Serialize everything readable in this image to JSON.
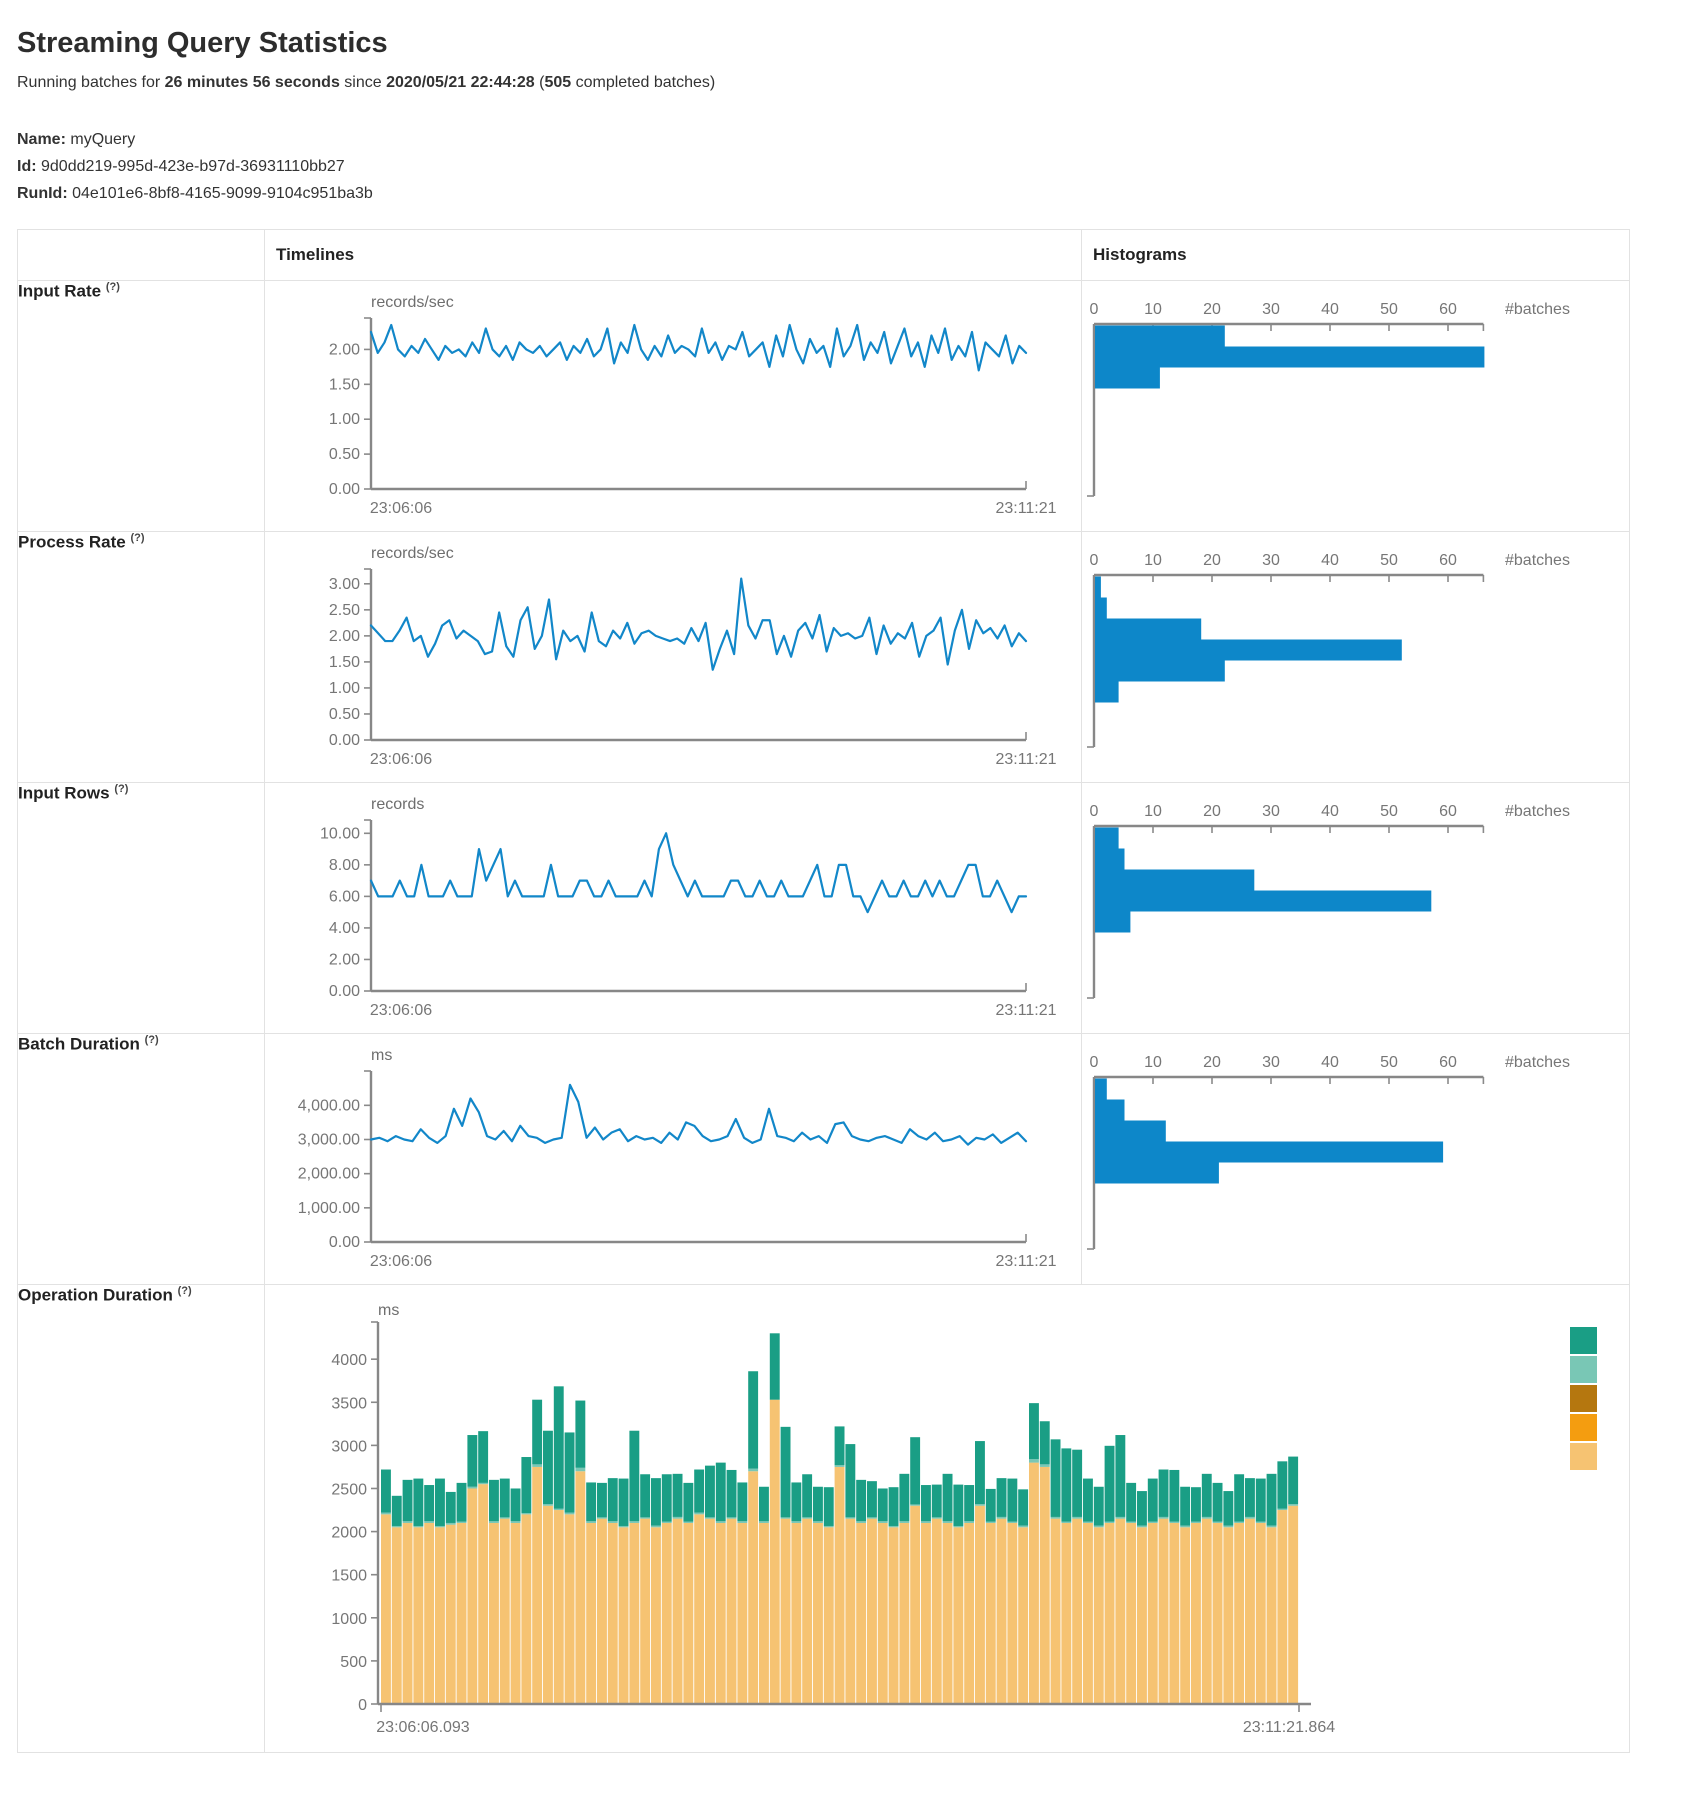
{
  "page": {
    "title": "Streaming Query Statistics",
    "sub": {
      "prefix": "Running batches for ",
      "duration": "26 minutes 56 seconds",
      "mid": " since ",
      "start": "2020/05/21 22:44:28",
      "open": " (",
      "count": "505",
      "close": " completed batches)"
    },
    "name_label": "Name:",
    "name": "myQuery",
    "id_label": "Id:",
    "id": "9d0dd219-995d-423e-b97d-36931110bb27",
    "runid_label": "RunId:",
    "runid": "04e101e6-8bf8-4165-9099-9104c951ba3b"
  },
  "table": {
    "timelines_header": "Timelines",
    "histograms_header": "Histograms"
  },
  "rows": [
    {
      "label": "Input Rate",
      "help": "(?)"
    },
    {
      "label": "Process Rate",
      "help": "(?)"
    },
    {
      "label": "Input Rows",
      "help": "(?)"
    },
    {
      "label": "Batch Duration",
      "help": "(?)"
    },
    {
      "label": "Operation Duration",
      "help": "(?)"
    }
  ],
  "colors": {
    "blue": "#0d87c9",
    "teal": "#1a9e85",
    "light_teal": "#79c7b5",
    "dark_gold": "#b5770f",
    "orange": "#f49d10",
    "light_orange": "#f6c372"
  },
  "chart_data": [
    {
      "name": "input-rate-timeline",
      "type": "line",
      "title": "records/sec",
      "x_start_label": "23:06:06",
      "x_end_label": "23:11:21",
      "ylim": [
        0,
        2.35
      ],
      "ytick_values": [
        0,
        0.5,
        1,
        1.5,
        2
      ],
      "ytick_labels": [
        "0.00",
        "0.50",
        "1.00",
        "1.50",
        "2.00"
      ],
      "values": [
        2.25,
        1.95,
        2.1,
        2.35,
        2.0,
        1.9,
        2.05,
        1.95,
        2.15,
        2.0,
        1.85,
        2.05,
        1.95,
        2.0,
        1.9,
        2.1,
        1.95,
        2.3,
        2.0,
        1.9,
        2.05,
        1.85,
        2.1,
        2.0,
        1.95,
        2.05,
        1.9,
        2.0,
        2.1,
        1.85,
        2.05,
        1.95,
        2.15,
        1.9,
        2.0,
        2.3,
        1.8,
        2.1,
        1.95,
        2.35,
        2.0,
        1.85,
        2.05,
        1.9,
        2.2,
        1.95,
        2.05,
        2.0,
        1.9,
        2.3,
        1.95,
        2.1,
        1.85,
        2.05,
        2.0,
        2.25,
        1.9,
        2.0,
        2.1,
        1.75,
        2.2,
        1.9,
        2.35,
        2.0,
        1.8,
        2.15,
        1.95,
        2.05,
        1.75,
        2.3,
        1.9,
        2.05,
        2.35,
        1.85,
        2.1,
        1.95,
        2.25,
        1.8,
        2.05,
        2.3,
        1.9,
        2.1,
        1.75,
        2.2,
        1.95,
        2.3,
        1.85,
        2.05,
        1.9,
        2.25,
        1.7,
        2.1,
        2.0,
        1.9,
        2.2,
        1.8,
        2.05,
        1.95
      ]
    },
    {
      "name": "input-rate-histogram",
      "type": "bar",
      "xlabel": "#batches",
      "xticks": [
        0,
        10,
        20,
        30,
        40,
        50,
        60
      ],
      "xlim": [
        0,
        66
      ],
      "values": [
        22,
        66,
        11
      ]
    },
    {
      "name": "process-rate-timeline",
      "type": "line",
      "title": "records/sec",
      "x_start_label": "23:06:06",
      "x_end_label": "23:11:21",
      "ylim": [
        0,
        3.15
      ],
      "ytick_values": [
        0,
        0.5,
        1,
        1.5,
        2,
        2.5,
        3
      ],
      "ytick_labels": [
        "0.00",
        "0.50",
        "1.00",
        "1.50",
        "2.00",
        "2.50",
        "3.00"
      ],
      "values": [
        2.2,
        2.05,
        1.9,
        1.9,
        2.1,
        2.35,
        1.9,
        2.0,
        1.6,
        1.85,
        2.2,
        2.3,
        1.95,
        2.1,
        2.0,
        1.9,
        1.65,
        1.7,
        2.45,
        1.8,
        1.6,
        2.3,
        2.55,
        1.75,
        2.0,
        2.7,
        1.55,
        2.1,
        1.9,
        2.0,
        1.7,
        2.45,
        1.9,
        1.8,
        2.1,
        1.95,
        2.25,
        1.85,
        2.05,
        2.1,
        2.0,
        1.95,
        1.9,
        1.95,
        1.85,
        2.15,
        1.9,
        2.25,
        1.35,
        1.75,
        2.1,
        1.65,
        3.1,
        2.2,
        1.95,
        2.3,
        2.3,
        1.65,
        2.0,
        1.6,
        2.1,
        2.25,
        1.95,
        2.4,
        1.7,
        2.15,
        2.0,
        2.05,
        1.95,
        2.0,
        2.35,
        1.65,
        2.2,
        1.85,
        2.05,
        1.95,
        2.25,
        1.6,
        2.0,
        2.1,
        2.35,
        1.45,
        2.1,
        2.5,
        1.75,
        2.3,
        2.05,
        2.15,
        1.95,
        2.2,
        1.8,
        2.05,
        1.9
      ]
    },
    {
      "name": "process-rate-histogram",
      "type": "bar",
      "xlabel": "#batches",
      "xticks": [
        0,
        10,
        20,
        30,
        40,
        50,
        60
      ],
      "xlim": [
        0,
        66
      ],
      "values": [
        1,
        2,
        18,
        52,
        22,
        4
      ]
    },
    {
      "name": "input-rows-timeline",
      "type": "line",
      "title": "records",
      "x_start_label": "23:06:06",
      "x_end_label": "23:11:21",
      "ylim": [
        0,
        10.4
      ],
      "ytick_values": [
        0,
        2,
        4,
        6,
        8,
        10
      ],
      "ytick_labels": [
        "0.00",
        "2.00",
        "4.00",
        "6.00",
        "8.00",
        "10.00"
      ],
      "values": [
        7,
        6,
        6,
        6,
        7,
        6,
        6,
        8,
        6,
        6,
        6,
        7,
        6,
        6,
        6,
        9,
        7,
        8,
        9,
        6,
        7,
        6,
        6,
        6,
        6,
        8,
        6,
        6,
        6,
        7,
        7,
        6,
        6,
        7,
        6,
        6,
        6,
        6,
        7,
        6,
        9,
        10,
        8,
        7,
        6,
        7,
        6,
        6,
        6,
        6,
        7,
        7,
        6,
        6,
        7,
        6,
        6,
        7,
        6,
        6,
        6,
        7,
        8,
        6,
        6,
        8,
        8,
        6,
        6,
        5,
        6,
        7,
        6,
        6,
        7,
        6,
        6,
        7,
        6,
        7,
        6,
        6,
        7,
        8,
        8,
        6,
        6,
        7,
        6,
        5,
        6,
        6
      ]
    },
    {
      "name": "input-rows-histogram",
      "type": "bar",
      "xlabel": "#batches",
      "xticks": [
        0,
        10,
        20,
        30,
        40,
        50,
        60
      ],
      "xlim": [
        0,
        66
      ],
      "values": [
        4,
        5,
        27,
        57,
        6
      ]
    },
    {
      "name": "batch-duration-timeline",
      "type": "line",
      "title": "ms",
      "x_start_label": "23:06:06",
      "x_end_label": "23:11:21",
      "ylim": [
        0,
        4800
      ],
      "ytick_values": [
        0,
        1000,
        2000,
        3000,
        4000
      ],
      "ytick_labels": [
        "0.00",
        "1,000.00",
        "2,000.00",
        "3,000.00",
        "4,000.00"
      ],
      "values": [
        3000,
        3050,
        2950,
        3100,
        3000,
        2950,
        3300,
        3050,
        2900,
        3100,
        3900,
        3400,
        4200,
        3800,
        3100,
        3000,
        3250,
        2950,
        3400,
        3100,
        3050,
        2900,
        3000,
        3050,
        4600,
        4100,
        3050,
        3350,
        3000,
        3200,
        3300,
        2950,
        3100,
        3000,
        3050,
        2900,
        3200,
        3000,
        3500,
        3400,
        3100,
        2950,
        3000,
        3100,
        3600,
        3050,
        2900,
        3000,
        3900,
        3100,
        3050,
        2950,
        3200,
        3000,
        3100,
        2900,
        3450,
        3500,
        3100,
        3000,
        2950,
        3050,
        3100,
        3000,
        2900,
        3300,
        3100,
        3000,
        3200,
        2950,
        3000,
        3100,
        2850,
        3050,
        3000,
        3150,
        2900,
        3050,
        3200,
        2950
      ]
    },
    {
      "name": "batch-duration-histogram",
      "type": "bar",
      "xlabel": "#batches",
      "xticks": [
        0,
        10,
        20,
        30,
        40,
        50,
        60
      ],
      "xlim": [
        0,
        66
      ],
      "values": [
        2,
        5,
        12,
        59,
        21
      ]
    },
    {
      "name": "operation-duration-stacked",
      "type": "stacked-bar",
      "title": "ms",
      "x_start_label": "23:06:06.093",
      "x_end_label": "23:11:21.864",
      "ylim": [
        0,
        4350
      ],
      "ytick_values": [
        0,
        500,
        1000,
        1500,
        2000,
        2500,
        3000,
        3500,
        4000
      ],
      "ytick_labels": [
        "0",
        "500",
        "1000",
        "1500",
        "2000",
        "2500",
        "3000",
        "3500",
        "4000"
      ],
      "series_colors": [
        "#f6c372",
        "#79c7b5",
        "#1a9e85"
      ],
      "legend_colors": [
        "#1a9e85",
        "#79c7b5",
        "#b5770f",
        "#f49d10",
        "#f6c372"
      ],
      "bars": [
        [
          2200,
          20,
          500
        ],
        [
          2050,
          15,
          350
        ],
        [
          2100,
          20,
          480
        ],
        [
          2050,
          15,
          550
        ],
        [
          2100,
          20,
          420
        ],
        [
          2050,
          15,
          550
        ],
        [
          2080,
          20,
          360
        ],
        [
          2100,
          15,
          450
        ],
        [
          2500,
          20,
          600
        ],
        [
          2550,
          15,
          600
        ],
        [
          2100,
          20,
          480
        ],
        [
          2150,
          15,
          450
        ],
        [
          2100,
          20,
          380
        ],
        [
          2200,
          15,
          650
        ],
        [
          2750,
          30,
          750
        ],
        [
          2300,
          20,
          850
        ],
        [
          2250,
          15,
          1420
        ],
        [
          2200,
          20,
          930
        ],
        [
          2700,
          40,
          780
        ],
        [
          2100,
          20,
          450
        ],
        [
          2150,
          15,
          400
        ],
        [
          2100,
          20,
          500
        ],
        [
          2050,
          15,
          550
        ],
        [
          2100,
          20,
          1050
        ],
        [
          2150,
          15,
          500
        ],
        [
          2050,
          20,
          550
        ],
        [
          2100,
          15,
          550
        ],
        [
          2150,
          20,
          500
        ],
        [
          2100,
          15,
          450
        ],
        [
          2200,
          20,
          500
        ],
        [
          2150,
          15,
          600
        ],
        [
          2100,
          20,
          680
        ],
        [
          2150,
          15,
          550
        ],
        [
          2100,
          20,
          450
        ],
        [
          2700,
          30,
          1130
        ],
        [
          2100,
          20,
          400
        ],
        [
          3530,
          0,
          770
        ],
        [
          2150,
          15,
          1050
        ],
        [
          2100,
          20,
          450
        ],
        [
          2150,
          15,
          500
        ],
        [
          2100,
          20,
          400
        ],
        [
          2050,
          15,
          450
        ],
        [
          2750,
          20,
          450
        ],
        [
          2150,
          15,
          850
        ],
        [
          2100,
          20,
          480
        ],
        [
          2150,
          15,
          420
        ],
        [
          2100,
          20,
          380
        ],
        [
          2050,
          15,
          450
        ],
        [
          2100,
          20,
          550
        ],
        [
          2300,
          15,
          780
        ],
        [
          2100,
          20,
          420
        ],
        [
          2150,
          15,
          380
        ],
        [
          2100,
          20,
          550
        ],
        [
          2050,
          15,
          480
        ],
        [
          2100,
          20,
          420
        ],
        [
          2300,
          20,
          730
        ],
        [
          2100,
          15,
          380
        ],
        [
          2150,
          20,
          450
        ],
        [
          2100,
          15,
          500
        ],
        [
          2050,
          20,
          420
        ],
        [
          2800,
          40,
          650
        ],
        [
          2750,
          30,
          500
        ],
        [
          2150,
          20,
          900
        ],
        [
          2100,
          15,
          850
        ],
        [
          2150,
          20,
          780
        ],
        [
          2100,
          15,
          500
        ],
        [
          2050,
          20,
          450
        ],
        [
          2100,
          15,
          880
        ],
        [
          2150,
          20,
          950
        ],
        [
          2100,
          15,
          450
        ],
        [
          2050,
          20,
          400
        ],
        [
          2100,
          15,
          500
        ],
        [
          2150,
          20,
          550
        ],
        [
          2100,
          15,
          600
        ],
        [
          2050,
          20,
          450
        ],
        [
          2100,
          15,
          400
        ],
        [
          2150,
          20,
          500
        ],
        [
          2100,
          15,
          450
        ],
        [
          2050,
          20,
          400
        ],
        [
          2100,
          15,
          550
        ],
        [
          2150,
          20,
          450
        ],
        [
          2100,
          15,
          500
        ],
        [
          2050,
          20,
          600
        ],
        [
          2250,
          15,
          550
        ],
        [
          2300,
          20,
          550
        ]
      ]
    }
  ]
}
